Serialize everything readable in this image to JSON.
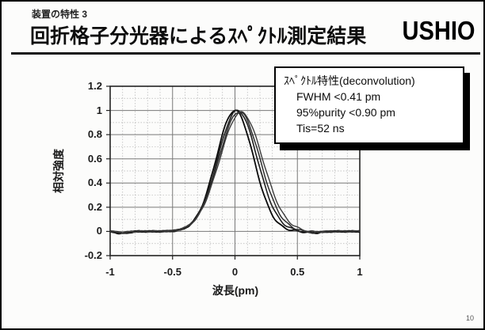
{
  "slide": {
    "header_label": "装置の特性 3",
    "title": "回折格子分光器によるｽﾍﾟｸﾄﾙ測定結果",
    "logo_text": "USHIO",
    "page_number": "10"
  },
  "info_box": {
    "title": "ｽﾍﾟｸﾄﾙ特性(deconvolution)",
    "lines": [
      "FWHM <0.41 pm",
      "95%purity <0.90 pm",
      "Tis=52 ns"
    ]
  },
  "chart_data": {
    "type": "line",
    "title": "",
    "xlabel": "波長(pm)",
    "ylabel": "相対強度",
    "xlim": [
      -1,
      1
    ],
    "ylim": [
      -0.2,
      1.2
    ],
    "xticks": [
      -1,
      -0.5,
      0,
      0.5,
      1
    ],
    "xtick_labels": [
      "-1",
      "-0.5",
      "0",
      "0.5",
      "1"
    ],
    "yticks": [
      1.2,
      1,
      0.8,
      0.6,
      0.4,
      0.2,
      0,
      -0.2
    ],
    "ytick_labels": [
      "1.2",
      "1",
      "0.8",
      "0.6",
      "0.4",
      "0.2",
      "0",
      "-0.2"
    ],
    "minor_step_x": 0.1,
    "minor_step_y": 0.1,
    "grid": true,
    "legend": "none",
    "description": "Four overlapping measured spectrum traces; near-Gaussian peak centered near 0 pm, peak relative intensity 1.0, measured FWHM about 0.4 pm, flat baseline at 0 with slight noise",
    "series": [
      {
        "name": "trace-1",
        "model": "gaussian",
        "center": 0.0,
        "sigma": 0.15,
        "amplitude": 1.0
      },
      {
        "name": "trace-2",
        "model": "gaussian",
        "center": 0.02,
        "sigma": 0.158,
        "amplitude": 1.0
      },
      {
        "name": "trace-3",
        "model": "gaussian",
        "center": 0.035,
        "sigma": 0.165,
        "amplitude": 0.99
      },
      {
        "name": "trace-4",
        "model": "gaussian",
        "center": 0.05,
        "sigma": 0.172,
        "amplitude": 0.985
      }
    ],
    "baseline_wiggles": [
      {
        "center": -0.9,
        "depth": -0.018,
        "width": 0.045
      },
      {
        "center": 0.63,
        "depth": -0.012,
        "width": 0.06
      }
    ],
    "colors": {
      "trace": "#111111",
      "grid_major": "#787878",
      "grid_minor": "#b4b4b4",
      "border": "#222222"
    }
  }
}
